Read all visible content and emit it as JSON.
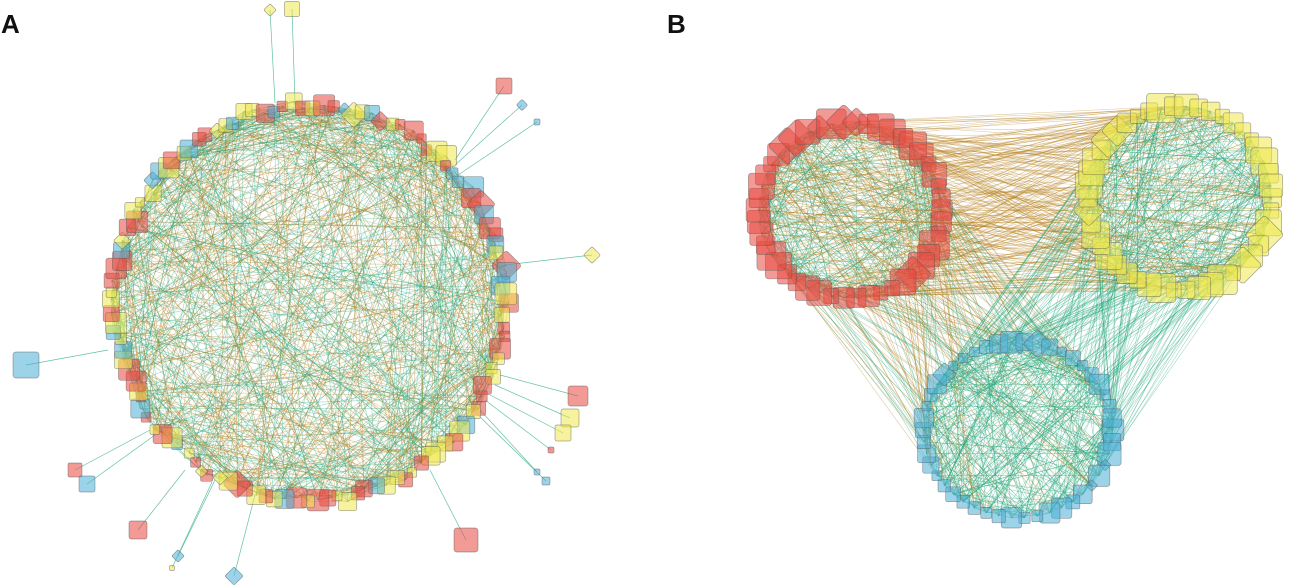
{
  "panels": {
    "a_label": "A",
    "b_label": "B"
  },
  "colors": {
    "red": "#e8483f",
    "yellow": "#efe84c",
    "blue": "#4aaed6",
    "edge_green": "#21a67a",
    "edge_brown": "#b5801f"
  },
  "node_groups": [
    "red",
    "yellow",
    "blue"
  ]
}
